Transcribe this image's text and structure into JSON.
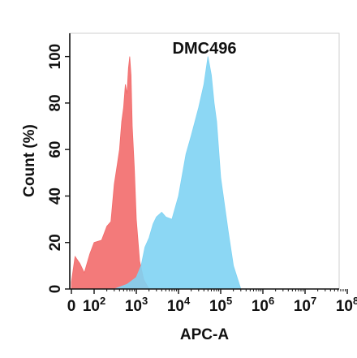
{
  "chart_data": {
    "type": "area",
    "title": "DMC496",
    "xlabel": "APC-A",
    "ylabel": "Count  (%)",
    "x_scale": "biexponential (linear near 0, log10 above)",
    "xlim": [
      0,
      100000000
    ],
    "ylim": [
      0,
      110
    ],
    "x_ticks": [
      {
        "base": "0",
        "exp": ""
      },
      {
        "base": "10",
        "exp": "2"
      },
      {
        "base": "10",
        "exp": "3"
      },
      {
        "base": "10",
        "exp": "4"
      },
      {
        "base": "10",
        "exp": "5"
      },
      {
        "base": "10",
        "exp": "6"
      },
      {
        "base": "10",
        "exp": "7"
      },
      {
        "base": "10",
        "exp": "8"
      }
    ],
    "y_ticks": [
      "0",
      "20",
      "40",
      "60",
      "80",
      "100"
    ],
    "grid": false,
    "legend": "none",
    "series": [
      {
        "color": "#f26b6b",
        "x": [
          0,
          5,
          15,
          30,
          60,
          100,
          150,
          200,
          250,
          300,
          350,
          400,
          450,
          500,
          550,
          600,
          650,
          700,
          750,
          800,
          900,
          1000,
          1200,
          1500,
          2000
        ],
        "y": [
          3,
          14,
          11,
          7,
          15,
          20,
          21,
          27,
          29,
          45,
          53,
          60,
          72,
          78,
          88,
          84,
          95,
          100,
          92,
          70,
          52,
          30,
          12,
          4,
          0
        ]
      },
      {
        "color": "#7fd3f3",
        "x": [
          300,
          600,
          1000,
          1300,
          1600,
          2000,
          2500,
          3000,
          4000,
          5000,
          7000,
          10000,
          15000,
          20000,
          30000,
          40000,
          50000,
          60000,
          70000,
          80000,
          100000,
          150000,
          200000,
          300000
        ],
        "y": [
          0,
          2,
          5,
          10,
          18,
          22,
          28,
          31,
          33,
          31,
          30,
          40,
          58,
          66,
          78,
          88,
          100,
          92,
          80,
          72,
          48,
          25,
          10,
          0
        ]
      }
    ]
  }
}
